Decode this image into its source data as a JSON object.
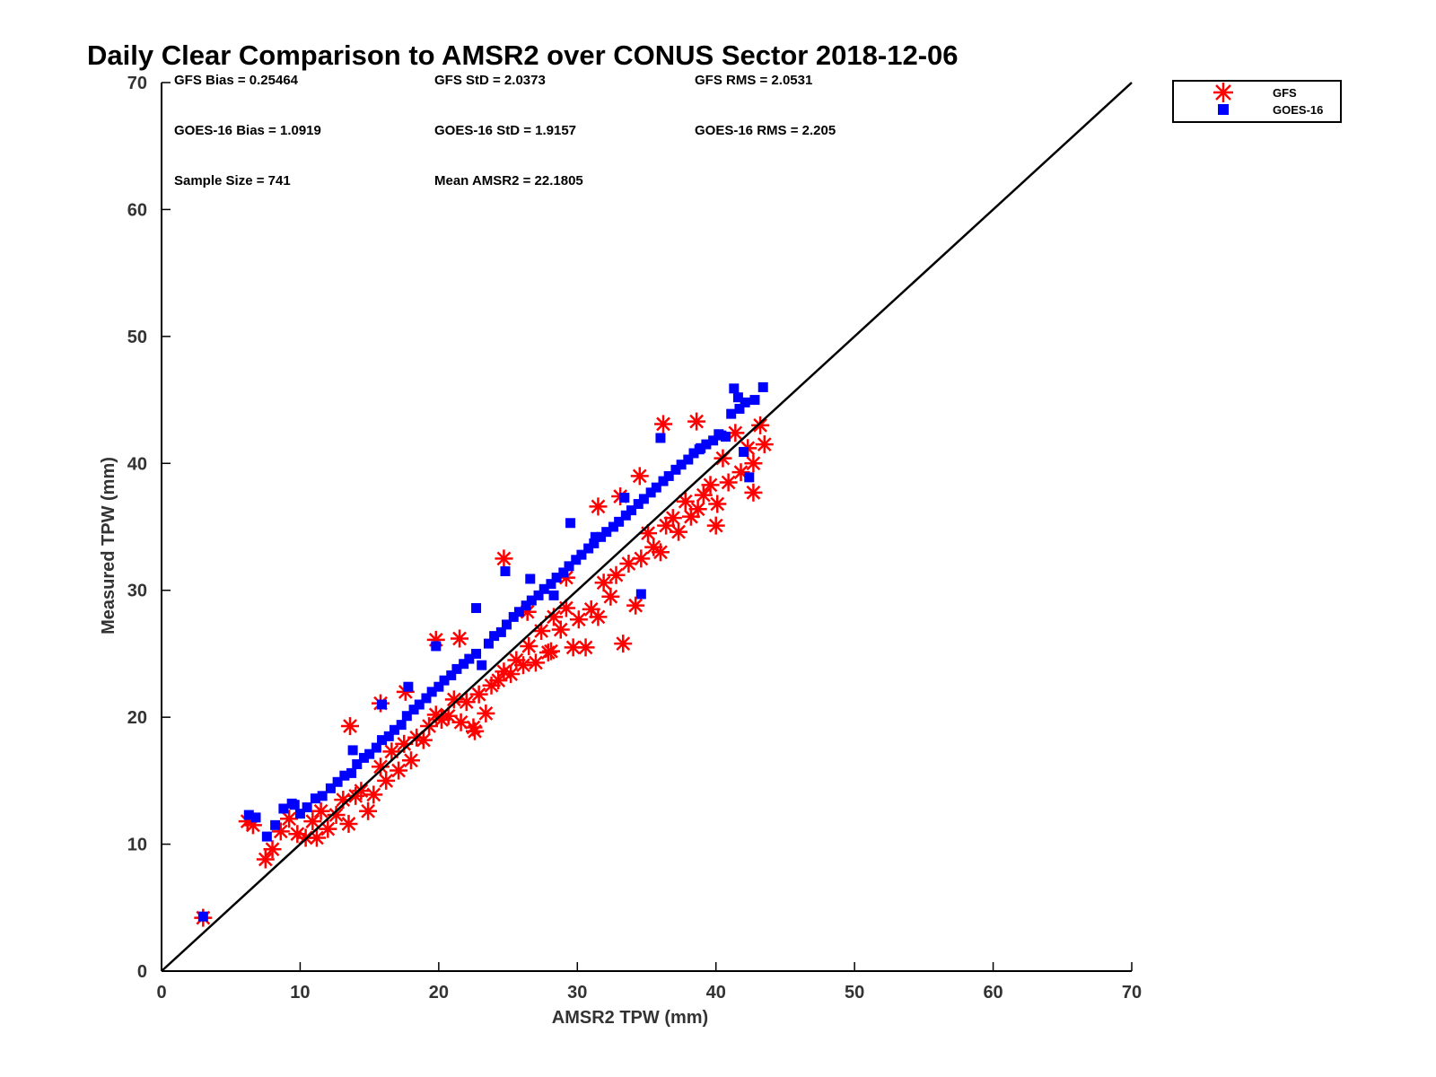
{
  "chart_data": {
    "type": "scatter",
    "title": "Daily Clear Comparison to AMSR2 over CONUS Sector 2018-12-06",
    "xlabel": "AMSR2 TPW (mm)",
    "ylabel": "Measured TPW (mm)",
    "xlim": [
      0,
      70
    ],
    "ylim": [
      0,
      70
    ],
    "xticks": [
      "0",
      "10",
      "20",
      "30",
      "40",
      "50",
      "60",
      "70"
    ],
    "yticks": [
      "0",
      "10",
      "20",
      "30",
      "40",
      "50",
      "60",
      "70"
    ],
    "grid": false,
    "legend_position": "top-right outside",
    "reference_line": {
      "from": [
        0,
        0
      ],
      "to": [
        70,
        70
      ],
      "color": "#000000"
    },
    "annotations": [
      "GFS Bias = 0.25464",
      "GFS StD = 2.0373",
      "GFS RMS = 2.0531",
      "GOES-16 Bias = 1.0919",
      "GOES-16 StD = 1.9157",
      "GOES-16 RMS = 2.205",
      "Sample Size = 741",
      "Mean AMSR2 = 22.1805"
    ],
    "series": [
      {
        "name": "GFS",
        "marker": "asterisk",
        "color": "#ff0000",
        "x": [
          3.0,
          6.2,
          6.6,
          7.5,
          8.0,
          8.6,
          9.2,
          9.8,
          10.4,
          10.9,
          11.5,
          12.0,
          12.6,
          13.1,
          13.5,
          14.0,
          14.4,
          14.9,
          15.3,
          15.8,
          16.2,
          16.6,
          17.1,
          17.5,
          18.0,
          18.4,
          18.9,
          19.3,
          19.8,
          20.2,
          20.7,
          21.1,
          21.6,
          22.0,
          22.5,
          22.9,
          23.4,
          23.8,
          24.3,
          24.7,
          25.2,
          25.6,
          26.1,
          26.5,
          27.0,
          27.4,
          27.9,
          28.3,
          28.8,
          29.2,
          29.7,
          30.1,
          30.6,
          31.0,
          31.5,
          31.9,
          32.4,
          32.8,
          33.3,
          33.7,
          34.2,
          34.6,
          35.1,
          35.5,
          36.0,
          36.4,
          36.9,
          37.3,
          37.8,
          38.2,
          38.7,
          39.1,
          39.6,
          40.0,
          40.5,
          40.9,
          41.4,
          41.8,
          42.3,
          42.7,
          43.2,
          43.5,
          24.7,
          19.8,
          21.5,
          29.2,
          31.5,
          33.1,
          34.5,
          36.2,
          38.6,
          40.1,
          42.7,
          15.8,
          17.6,
          13.6,
          11.2,
          22.6,
          26.4,
          28.1
        ],
        "y": [
          4.2,
          11.8,
          11.5,
          8.8,
          9.6,
          11.0,
          12.0,
          10.8,
          10.5,
          11.8,
          12.6,
          11.2,
          12.3,
          13.5,
          11.6,
          13.8,
          14.2,
          12.6,
          13.9,
          16.1,
          15.0,
          17.3,
          15.8,
          17.9,
          16.6,
          18.4,
          18.2,
          19.3,
          20.2,
          19.8,
          20.1,
          21.4,
          19.6,
          21.2,
          19.2,
          21.8,
          20.3,
          22.5,
          22.9,
          23.6,
          23.4,
          24.5,
          24.1,
          25.6,
          24.3,
          26.8,
          25.1,
          27.9,
          26.9,
          28.6,
          25.5,
          27.7,
          25.5,
          28.5,
          27.9,
          30.6,
          29.5,
          31.2,
          25.8,
          32.1,
          28.8,
          32.5,
          34.5,
          33.4,
          33.0,
          35.1,
          35.7,
          34.6,
          37.0,
          35.8,
          36.4,
          37.5,
          38.3,
          35.1,
          40.4,
          38.5,
          42.4,
          39.3,
          41.2,
          37.7,
          43.0,
          41.5,
          32.5,
          26.1,
          26.2,
          31.0,
          36.6,
          37.4,
          39.0,
          43.1,
          43.3,
          36.8,
          40.0,
          21.1,
          22.0,
          19.3,
          10.5,
          18.9,
          28.3,
          25.2
        ]
      },
      {
        "name": "GOES-16",
        "marker": "square",
        "color": "#0000ff",
        "x": [
          3.0,
          6.3,
          6.8,
          7.6,
          8.2,
          8.8,
          9.4,
          10.0,
          10.5,
          11.1,
          11.6,
          12.2,
          12.7,
          13.2,
          13.7,
          14.1,
          14.6,
          15.0,
          15.5,
          15.9,
          16.4,
          16.8,
          17.3,
          17.7,
          18.2,
          18.6,
          19.1,
          19.5,
          20.0,
          20.4,
          20.9,
          21.3,
          21.8,
          22.2,
          22.7,
          23.1,
          23.6,
          24.0,
          24.5,
          24.9,
          25.4,
          25.8,
          26.3,
          26.7,
          27.2,
          27.6,
          28.1,
          28.5,
          29.0,
          29.4,
          29.9,
          30.3,
          30.8,
          31.2,
          31.7,
          32.1,
          32.6,
          33.0,
          33.5,
          33.9,
          34.4,
          34.8,
          35.3,
          35.7,
          36.2,
          36.6,
          37.1,
          37.5,
          38.0,
          38.4,
          38.9,
          39.3,
          39.8,
          40.2,
          40.7,
          41.1,
          41.6,
          42.0,
          42.4,
          42.8,
          43.4,
          41.3,
          41.7,
          24.8,
          19.8,
          29.5,
          31.3,
          33.4,
          34.6,
          36.0,
          38.8,
          40.4,
          42.1,
          15.9,
          17.8,
          13.8,
          22.7,
          26.6,
          28.3,
          9.6
        ],
        "y": [
          4.3,
          12.3,
          12.1,
          10.6,
          11.5,
          12.8,
          13.2,
          12.4,
          12.9,
          13.6,
          13.8,
          14.4,
          14.9,
          15.4,
          15.6,
          16.3,
          16.8,
          17.1,
          17.6,
          18.2,
          18.5,
          19.0,
          19.4,
          20.1,
          20.6,
          21.0,
          21.5,
          22.0,
          22.4,
          22.9,
          23.3,
          23.8,
          24.2,
          24.6,
          25.0,
          24.1,
          25.8,
          26.4,
          26.7,
          27.3,
          27.9,
          28.3,
          28.8,
          29.2,
          29.6,
          30.1,
          30.5,
          31.0,
          31.4,
          31.9,
          32.4,
          32.8,
          33.3,
          33.7,
          34.2,
          34.6,
          35.0,
          35.4,
          35.9,
          36.3,
          36.8,
          37.2,
          37.7,
          38.1,
          38.6,
          39.0,
          39.5,
          39.9,
          40.3,
          40.8,
          41.2,
          41.5,
          41.8,
          42.3,
          42.1,
          43.9,
          45.2,
          40.9,
          38.9,
          45.0,
          46.0,
          45.9,
          44.3,
          31.5,
          25.6,
          35.3,
          34.2,
          37.3,
          29.7,
          42.0,
          41.1,
          42.2,
          44.8,
          21.0,
          22.4,
          17.4,
          28.6,
          30.9,
          29.6,
          13.1
        ]
      }
    ]
  },
  "legend": {
    "items": [
      {
        "label": "GFS",
        "color": "#ff0000",
        "marker": "asterisk"
      },
      {
        "label": "GOES-16",
        "color": "#0000ff",
        "marker": "square"
      }
    ]
  }
}
